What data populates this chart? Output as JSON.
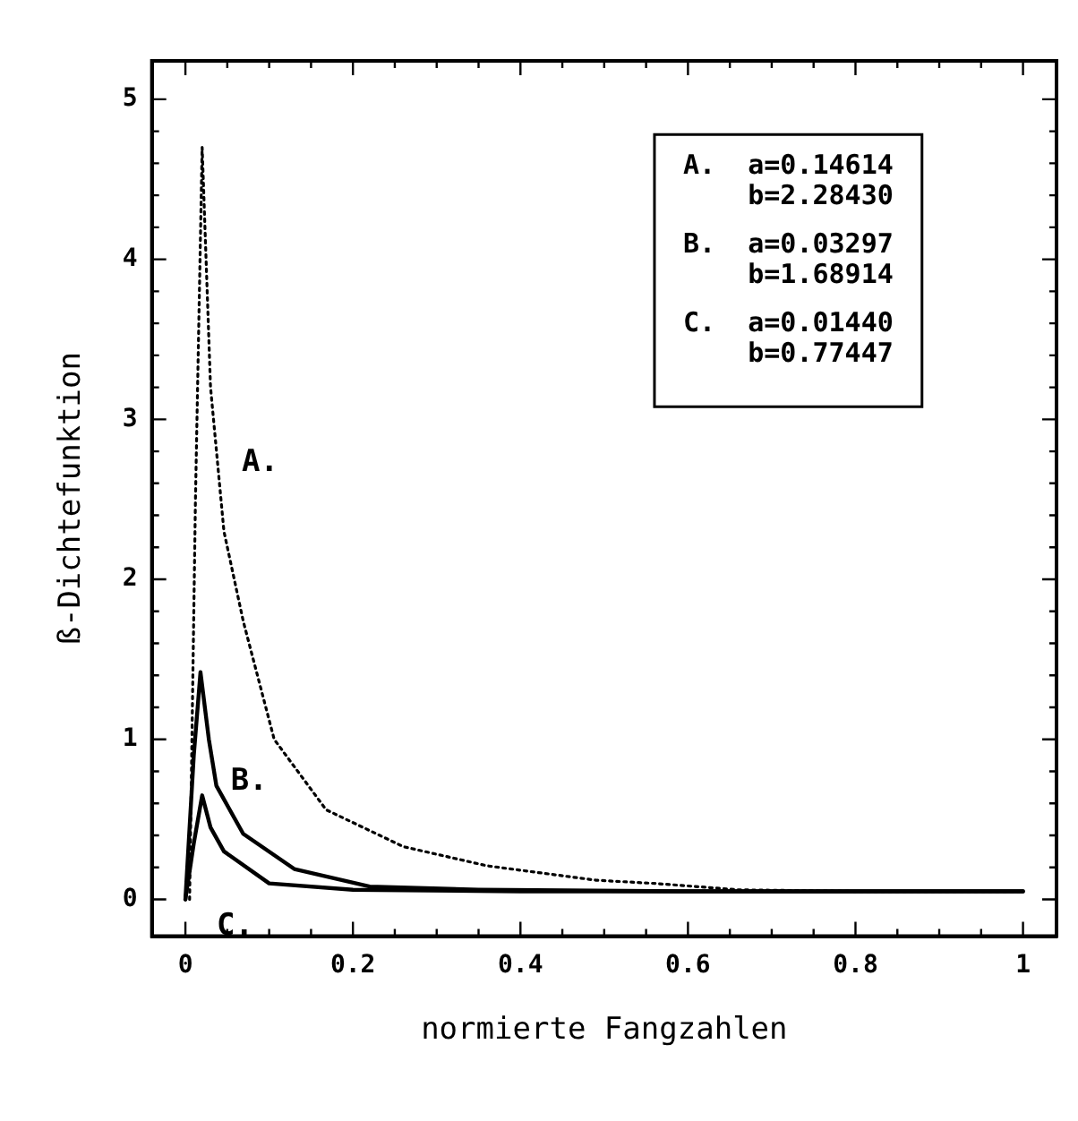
{
  "chart_data": {
    "type": "line",
    "xlabel": "normierte Fangzahlen",
    "ylabel": "ß-Dichtefunktion",
    "xlim": [
      -0.04,
      1.04
    ],
    "ylim": [
      -0.23,
      5.24
    ],
    "xticks": [
      0,
      {
        "value": 0.05,
        "label": null
      },
      {
        "value": 0.1,
        "label": null
      },
      {
        "value": 0.15,
        "label": null
      },
      {
        "value": 0.2,
        "label": "0.2"
      },
      {
        "value": 0.25,
        "label": null
      },
      {
        "value": 0.3,
        "label": null
      },
      {
        "value": 0.35,
        "label": null
      },
      {
        "value": 0.4,
        "label": "0.4"
      },
      {
        "value": 0.45,
        "label": null
      },
      {
        "value": 0.5,
        "label": null
      },
      {
        "value": 0.55,
        "label": null
      },
      {
        "value": 0.6,
        "label": "0.6"
      },
      {
        "value": 0.65,
        "label": null
      },
      {
        "value": 0.7,
        "label": null
      },
      {
        "value": 0.75,
        "label": null
      },
      {
        "value": 0.8,
        "label": "0.8"
      },
      {
        "value": 0.85,
        "label": null
      },
      {
        "value": 0.9,
        "label": null
      },
      {
        "value": 0.95,
        "label": null
      },
      1
    ],
    "yticks": [
      0,
      {
        "value": 0.2,
        "label": null
      },
      {
        "value": 0.4,
        "label": null
      },
      {
        "value": 0.6,
        "label": null
      },
      {
        "value": 0.8,
        "label": null
      },
      1,
      {
        "value": 1.2,
        "label": null
      },
      {
        "value": 1.4,
        "label": null
      },
      {
        "value": 1.6,
        "label": null
      },
      {
        "value": 1.8,
        "label": null
      },
      2,
      {
        "value": 2.2,
        "label": null
      },
      {
        "value": 2.4,
        "label": null
      },
      {
        "value": 2.6,
        "label": null
      },
      {
        "value": 2.8,
        "label": null
      },
      3,
      {
        "value": 3.2,
        "label": null
      },
      {
        "value": 3.4,
        "label": null
      },
      {
        "value": 3.6,
        "label": null
      },
      {
        "value": 3.8,
        "label": null
      },
      4,
      {
        "value": 4.2,
        "label": null
      },
      {
        "value": 4.4,
        "label": null
      },
      {
        "value": 4.6,
        "label": null
      },
      {
        "value": 4.8,
        "label": null
      },
      5
    ],
    "grid": false,
    "legend": false,
    "marker": "none",
    "series": [
      {
        "name": "A.",
        "color": "#000000",
        "line_style": "dotted",
        "x": [
          0.005,
          0.012,
          0.02,
          0.03,
          0.046,
          0.069,
          0.106,
          0.168,
          0.26,
          0.36,
          0.49,
          0.56,
          0.66,
          0.8,
          1.0
        ],
        "values": [
          0.0,
          2.5,
          4.7,
          3.2,
          2.3,
          1.74,
          1.0,
          0.56,
          0.33,
          0.21,
          0.12,
          0.1,
          0.06,
          0.05,
          0.05
        ]
      },
      {
        "name": "B.",
        "color": "#000000",
        "line_style": "solid",
        "x": [
          0.0,
          0.01,
          0.018,
          0.028,
          0.037,
          0.069,
          0.13,
          0.22,
          0.35,
          0.6,
          1.0
        ],
        "values": [
          0.0,
          0.9,
          1.42,
          1.0,
          0.71,
          0.41,
          0.19,
          0.08,
          0.06,
          0.05,
          0.05
        ]
      },
      {
        "name": "C.",
        "color": "#000000",
        "line_style": "solid",
        "x": [
          0.0,
          0.01,
          0.02,
          0.03,
          0.046,
          0.1,
          0.2,
          0.4,
          1.0
        ],
        "values": [
          0.0,
          0.35,
          0.65,
          0.45,
          0.3,
          0.1,
          0.06,
          0.05,
          0.05
        ]
      }
    ],
    "annotations": [
      "A.  a=0.14614\n    b=2.28430",
      "B.  a=0.03297\n    b=1.68914",
      "C.  a=0.01440\n    b=0.77447"
    ]
  }
}
